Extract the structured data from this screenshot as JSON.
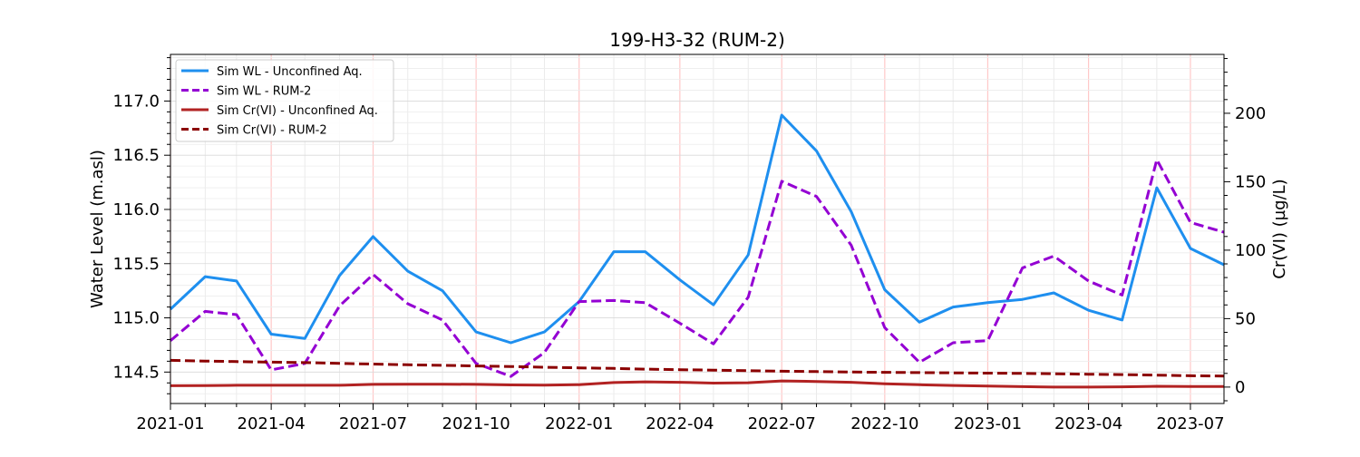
{
  "chart_data": {
    "type": "line",
    "title": "199-H3-32 (RUM-2)",
    "xlabel": "",
    "ylabel": "Water Level (m.asl)",
    "y2label": "Cr(VI) (µg/L)",
    "ylim": [
      114.21,
      117.43
    ],
    "y2lim": [
      -12,
      243
    ],
    "xlim": [
      "2021-01-01",
      "2023-07-31"
    ],
    "x_ticks": [
      {
        "date": "2021-01-01",
        "label": "2021-01"
      },
      {
        "date": "2021-04-01",
        "label": "2021-04"
      },
      {
        "date": "2021-07-01",
        "label": "2021-07"
      },
      {
        "date": "2021-10-01",
        "label": "2021-10"
      },
      {
        "date": "2022-01-01",
        "label": "2022-01"
      },
      {
        "date": "2022-04-01",
        "label": "2022-04"
      },
      {
        "date": "2022-07-01",
        "label": "2022-07"
      },
      {
        "date": "2022-10-01",
        "label": "2022-10"
      },
      {
        "date": "2023-01-01",
        "label": "2023-01"
      },
      {
        "date": "2023-04-01",
        "label": "2023-04"
      },
      {
        "date": "2023-07-01",
        "label": "2023-07"
      }
    ],
    "y_ticks": [
      {
        "value": 114.5,
        "label": "114.5"
      },
      {
        "value": 115.0,
        "label": "115.0"
      },
      {
        "value": 115.5,
        "label": "115.5"
      },
      {
        "value": 116.0,
        "label": "116.0"
      },
      {
        "value": 116.5,
        "label": "116.5"
      },
      {
        "value": 117.0,
        "label": "117.0"
      }
    ],
    "y2_ticks": [
      {
        "value": 0,
        "label": "0"
      },
      {
        "value": 50,
        "label": "50"
      },
      {
        "value": 100,
        "label": "100"
      },
      {
        "value": 150,
        "label": "150"
      },
      {
        "value": 200,
        "label": "200"
      }
    ],
    "grid": true,
    "legend": "top-left",
    "x": [
      "2021-01-01",
      "2021-02-01",
      "2021-03-01",
      "2021-04-01",
      "2021-05-01",
      "2021-06-01",
      "2021-07-01",
      "2021-08-01",
      "2021-09-01",
      "2021-10-01",
      "2021-11-01",
      "2021-12-01",
      "2022-01-01",
      "2022-02-01",
      "2022-03-01",
      "2022-04-01",
      "2022-05-01",
      "2022-06-01",
      "2022-07-01",
      "2022-08-01",
      "2022-09-01",
      "2022-10-01",
      "2022-11-01",
      "2022-12-01",
      "2023-01-01",
      "2023-02-01",
      "2023-03-01",
      "2023-04-01",
      "2023-05-01",
      "2023-06-01",
      "2023-07-01",
      "2023-07-31"
    ],
    "series": [
      {
        "name": "Sim WL - Unconfined Aq.",
        "axis": "left",
        "color": "#1e8fef",
        "dash": "solid",
        "values": [
          115.08,
          115.38,
          115.34,
          114.85,
          114.81,
          115.39,
          115.75,
          115.43,
          115.25,
          114.87,
          114.77,
          114.87,
          115.15,
          115.61,
          115.61,
          115.35,
          115.12,
          115.58,
          116.87,
          116.54,
          115.98,
          115.26,
          114.96,
          115.1,
          115.14,
          115.17,
          115.23,
          115.07,
          114.98,
          116.2,
          115.64,
          115.49
        ]
      },
      {
        "name": "Sim WL - RUM-2",
        "axis": "left",
        "color": "#9400d3",
        "dash": "dashed",
        "values": [
          114.79,
          115.06,
          115.03,
          114.52,
          114.58,
          115.11,
          115.4,
          115.13,
          114.98,
          114.58,
          114.46,
          114.68,
          115.15,
          115.16,
          115.14,
          114.95,
          114.76,
          115.19,
          116.26,
          116.12,
          115.67,
          114.91,
          114.59,
          114.77,
          114.79,
          115.46,
          115.57,
          115.34,
          115.21,
          116.46,
          115.88,
          115.79
        ]
      },
      {
        "name": "Sim Cr(VI) - Unconfined Aq.",
        "axis": "right",
        "color": "#b22222",
        "dash": "solid",
        "values": [
          1.0,
          1.1,
          1.3,
          1.3,
          1.3,
          1.3,
          2.0,
          2.1,
          2.1,
          2.0,
          1.6,
          1.4,
          1.8,
          3.3,
          3.8,
          3.5,
          2.9,
          3.2,
          4.5,
          4.1,
          3.5,
          2.4,
          1.7,
          1.2,
          0.8,
          0.3,
          0.0,
          0.0,
          0.2,
          0.6,
          0.4,
          0.4
        ]
      },
      {
        "name": "Sim Cr(VI) - RUM-2",
        "axis": "right",
        "color": "#8b0000",
        "dash": "dashed",
        "values": [
          19.5,
          19.0,
          18.6,
          18.2,
          17.9,
          17.3,
          16.8,
          16.3,
          15.9,
          15.4,
          15.0,
          14.5,
          14.0,
          13.6,
          13.1,
          12.7,
          12.4,
          12.0,
          11.6,
          11.3,
          11.0,
          10.8,
          10.6,
          10.4,
          10.2,
          10.0,
          9.7,
          9.4,
          9.1,
          8.7,
          8.3,
          8.1
        ]
      }
    ]
  }
}
